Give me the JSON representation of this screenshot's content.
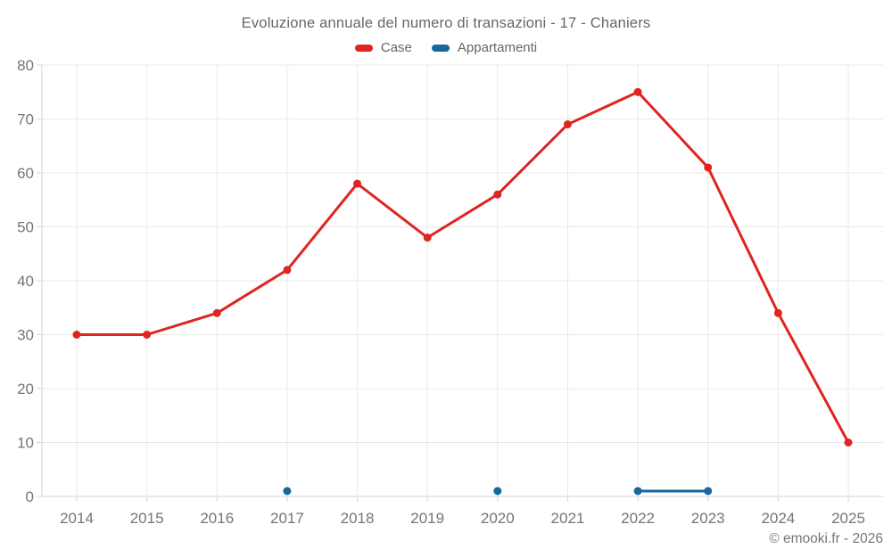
{
  "title": "Evoluzione annuale del numero di transazioni - 17 - Chaniers",
  "legend": {
    "items": [
      {
        "label": "Case",
        "color": "#e02420"
      },
      {
        "label": "Appartamenti",
        "color": "#16699d"
      }
    ]
  },
  "footer": "© emooki.fr - 2026",
  "colors": {
    "case_red": "#e02420",
    "appartamenti_blue": "#16699d",
    "grid": "#e8e8e8",
    "axis": "#d6d6d6",
    "tick_text": "#757575"
  },
  "chart_data": {
    "type": "line",
    "title": "Evoluzione annuale del numero di transazioni - 17 - Chaniers",
    "categories": [
      "2014",
      "2015",
      "2016",
      "2017",
      "2018",
      "2019",
      "2020",
      "2021",
      "2022",
      "2023",
      "2024",
      "2025"
    ],
    "series": [
      {
        "name": "Case",
        "color": "#e02420",
        "values": [
          30,
          30,
          34,
          42,
          58,
          48,
          56,
          69,
          75,
          61,
          34,
          10
        ]
      },
      {
        "name": "Appartamenti",
        "color": "#16699d",
        "values": [
          null,
          null,
          null,
          1,
          null,
          null,
          1,
          null,
          1,
          1,
          null,
          null
        ]
      }
    ],
    "xlabel": "",
    "ylabel": "",
    "ylim": [
      0,
      80
    ],
    "yticks": [
      0,
      10,
      20,
      30,
      40,
      50,
      60,
      70,
      80
    ],
    "grid": true,
    "legend_position": "top",
    "point_radius": 4.5,
    "line_width": 3
  }
}
